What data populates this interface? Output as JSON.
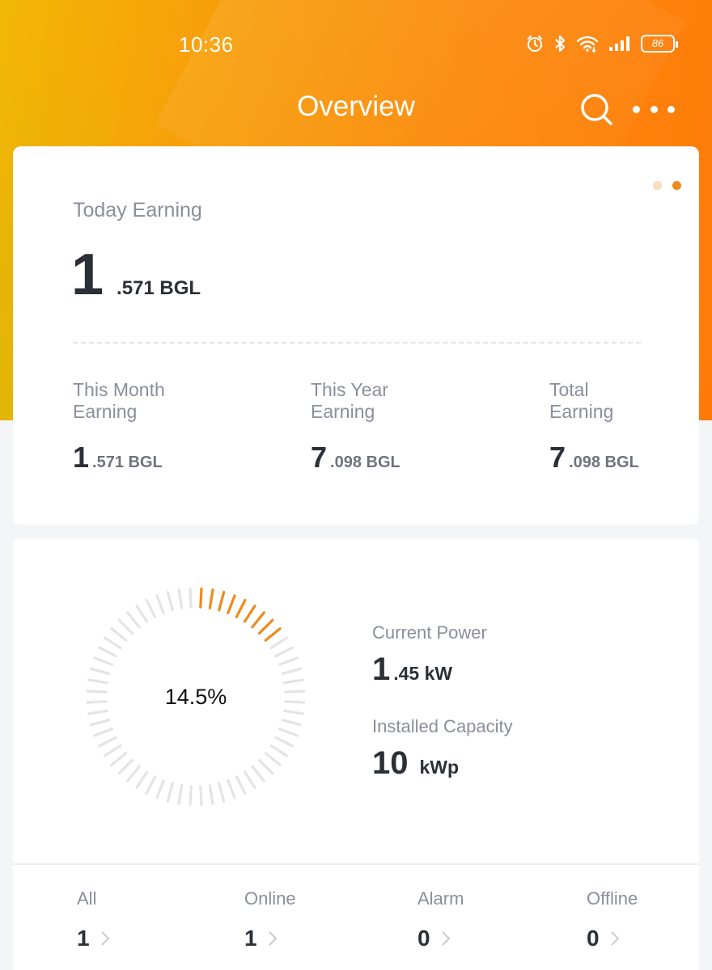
{
  "statusbar": {
    "time": "10:36",
    "battery_level": "86",
    "icons": [
      "alarm-icon",
      "bluetooth-icon",
      "wifi-icon",
      "signal-icon",
      "battery-icon"
    ]
  },
  "header": {
    "title": "Overview",
    "actions": [
      "search-icon",
      "more-icon"
    ]
  },
  "colors": {
    "accent": "#ef8a1d",
    "hero_gradient": [
      "#f2b705",
      "#ff7a0a"
    ],
    "text_dark": "#2b2f36",
    "text_muted": "#8a8f99",
    "gauge_inactive": "#e4e4e4"
  },
  "earnings": {
    "page_indicator": {
      "count": 2,
      "active_index": 1
    },
    "today": {
      "label": "Today Earning",
      "integer": "1",
      "decimal_unit": ".571 BGL"
    },
    "stats": [
      {
        "label": "This Month Earning",
        "integer": "1",
        "decimal_unit": ".571 BGL"
      },
      {
        "label": "This Year Earning",
        "integer": "7",
        "decimal_unit": ".098 BGL"
      },
      {
        "label": "Total Earning",
        "integer": "7",
        "decimal_unit": ".098 BGL"
      }
    ]
  },
  "power": {
    "percent_label": "14.5%",
    "percent_value": 0.145,
    "current_power": {
      "label": "Current Power",
      "integer": "1",
      "decimal_unit": ".45 kW"
    },
    "installed_capacity": {
      "label": "Installed Capacity",
      "integer": "10",
      "unit": "kWp"
    }
  },
  "plant_status": [
    {
      "label": "All",
      "count": "1"
    },
    {
      "label": "Online",
      "count": "1"
    },
    {
      "label": "Alarm",
      "count": "0"
    },
    {
      "label": "Offline",
      "count": "0"
    }
  ]
}
